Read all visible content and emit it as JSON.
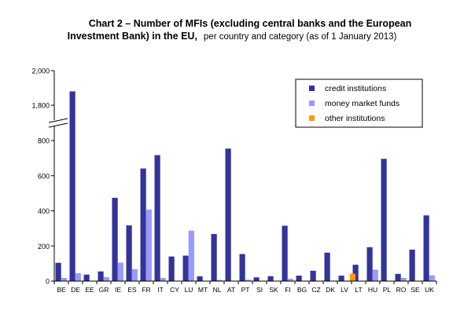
{
  "chart_data": {
    "type": "bar",
    "title_line1": "Chart 2 – Number of MFIs (excluding central banks and the European",
    "title_line2_bold": "Investment Bank) in the EU,",
    "subtitle": "per country and category  (as of 1 January 2013)",
    "categories": [
      "BE",
      "DE",
      "EE",
      "GR",
      "IE",
      "ES",
      "FR",
      "IT",
      "CY",
      "LU",
      "MT",
      "NL",
      "AT",
      "PT",
      "SI",
      "SK",
      "FI",
      "BG",
      "CZ",
      "DK",
      "LV",
      "LT",
      "HU",
      "PL",
      "RO",
      "SE",
      "UK"
    ],
    "series": [
      {
        "name": "credit institutions",
        "color": "#333399",
        "values": [
          104,
          1880,
          37,
          55,
          474,
          317,
          641,
          717,
          140,
          145,
          27,
          268,
          754,
          154,
          21,
          28,
          315,
          31,
          59,
          162,
          31,
          93,
          193,
          696,
          41,
          179,
          374
        ]
      },
      {
        "name": "money market funds",
        "color": "#9999FF",
        "values": [
          18,
          45,
          0,
          22,
          105,
          68,
          407,
          18,
          0,
          287,
          0,
          7,
          0,
          8,
          0,
          0,
          13,
          0,
          0,
          0,
          0,
          0,
          65,
          0,
          18,
          0,
          33
        ]
      },
      {
        "name": "other institutions",
        "color": "#FF9900",
        "values": [
          0,
          0,
          0,
          0,
          0,
          0,
          0,
          0,
          0,
          0,
          0,
          0,
          0,
          0,
          0,
          0,
          0,
          0,
          0,
          0,
          42,
          0,
          0,
          0,
          0,
          0,
          0
        ]
      }
    ],
    "y_ticks_lower": [
      "0",
      "200",
      "400",
      "600",
      "800"
    ],
    "y_ticks_upper": [
      "1,800",
      "2,000"
    ],
    "ylim_lower": [
      0,
      880
    ],
    "ylim_upper": [
      1740,
      2000
    ],
    "axis_break": true,
    "grid": false,
    "legend_position": "top-right"
  }
}
